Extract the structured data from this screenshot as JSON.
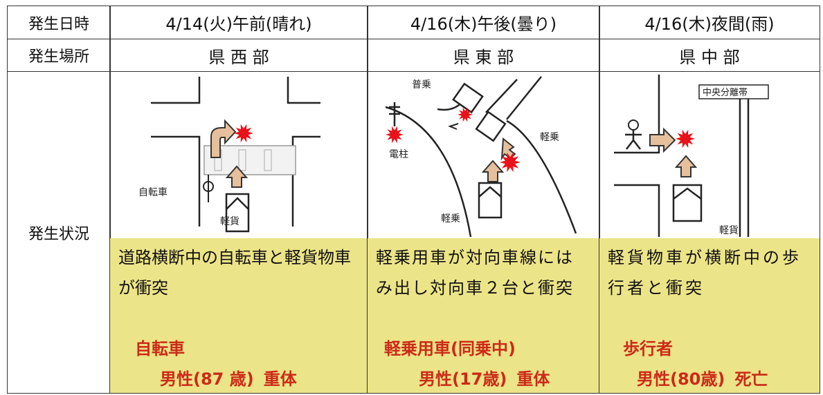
{
  "row_labels": [
    "発生日時",
    "発生場所",
    "発生状況"
  ],
  "columns": [
    {
      "datetime": "4/14(火)午前(晴れ)",
      "location": "県 西 部",
      "diagram_labels": [
        "自転車",
        "軽貨"
      ],
      "description": "道路横断中の自転車と軽貨物車が衝突",
      "victim": "自転車",
      "person": "男性(87 歳)",
      "outcome": "重体"
    },
    {
      "datetime": "4/16(木)午後(曇り)",
      "location": "県 東 部",
      "diagram_labels": [
        "普乗",
        "電柱",
        "軽乗",
        "軽乗"
      ],
      "description": "軽乗用車が対向車線にはみ出し対向車２台と衝突",
      "victim": "軽乗用車(同乗中)",
      "person": "男性(17歳)",
      "outcome": "重体"
    },
    {
      "datetime": "4/16(木)夜間(雨)",
      "location": "県 中 部",
      "diagram_labels": [
        "中央分離帯",
        "軽貨"
      ],
      "description": "軽貨物車が横断中の歩行者と衝突",
      "victim": "歩行者",
      "person": "男性(80歳)",
      "outcome": "死亡"
    }
  ]
}
